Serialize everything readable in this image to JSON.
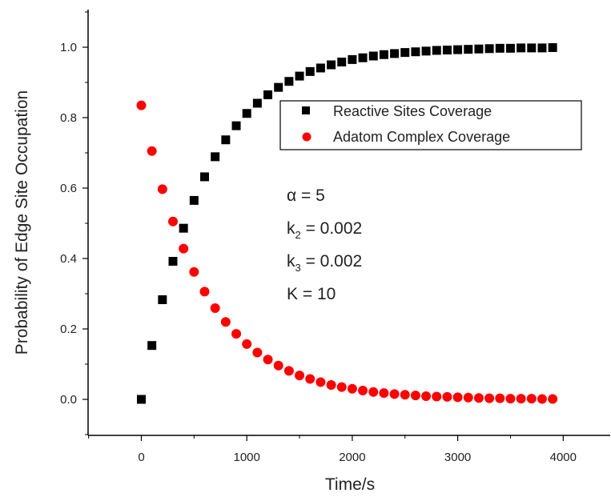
{
  "chart_data": {
    "type": "scatter",
    "xlabel": "Time/s",
    "ylabel": "Probability of Edge Site Occupation",
    "xlim": [
      -500,
      4500
    ],
    "ylim": [
      -0.1,
      1.1
    ],
    "x_ticks": [
      0,
      1000,
      2000,
      3000,
      4000
    ],
    "y_ticks": [
      0.0,
      0.2,
      0.4,
      0.6,
      0.8,
      1.0
    ],
    "x_tick_labels": [
      "0",
      "1000",
      "2000",
      "3000",
      "4000"
    ],
    "y_tick_labels": [
      "0.0",
      "0.2",
      "0.4",
      "0.6",
      "0.8",
      "1.0"
    ],
    "grid": false,
    "legend_position": "upper-right",
    "x": [
      0,
      100,
      200,
      300,
      400,
      500,
      600,
      700,
      800,
      900,
      1000,
      1100,
      1200,
      1300,
      1400,
      1500,
      1600,
      1700,
      1800,
      1900,
      2000,
      2100,
      2200,
      2300,
      2400,
      2500,
      2600,
      2700,
      2800,
      2900,
      3000,
      3100,
      3200,
      3300,
      3400,
      3500,
      3600,
      3700,
      3800,
      3900
    ],
    "series": [
      {
        "name": "Reactive Sites Coverage",
        "color": "#000000",
        "marker": "square",
        "values": [
          0.0,
          0.153,
          0.283,
          0.392,
          0.486,
          0.565,
          0.632,
          0.689,
          0.737,
          0.777,
          0.812,
          0.841,
          0.865,
          0.886,
          0.903,
          0.918,
          0.931,
          0.941,
          0.95,
          0.958,
          0.965,
          0.97,
          0.975,
          0.979,
          0.982,
          0.985,
          0.987,
          0.989,
          0.991,
          0.992,
          0.993,
          0.994,
          0.995,
          0.996,
          0.997,
          0.997,
          0.998,
          0.998,
          0.998,
          0.999
        ]
      },
      {
        "name": "Adatom Complex Coverage",
        "color": "#ff0000",
        "marker": "circle",
        "values": [
          0.835,
          0.705,
          0.597,
          0.505,
          0.428,
          0.362,
          0.306,
          0.259,
          0.22,
          0.186,
          0.157,
          0.133,
          0.113,
          0.096,
          0.081,
          0.068,
          0.058,
          0.049,
          0.041,
          0.035,
          0.03,
          0.025,
          0.021,
          0.018,
          0.015,
          0.013,
          0.011,
          0.009,
          0.008,
          0.007,
          0.006,
          0.005,
          0.004,
          0.003,
          0.003,
          0.002,
          0.002,
          0.002,
          0.001,
          0.001
        ]
      }
    ],
    "annotations": [
      {
        "main": "α = 5",
        "sub": "",
        "rest": ""
      },
      {
        "main": "k",
        "sub": "2",
        "rest": " = 0.002"
      },
      {
        "main": "k",
        "sub": "3",
        "rest": " = 0.002"
      },
      {
        "main": "K = 10",
        "sub": "",
        "rest": ""
      }
    ]
  }
}
